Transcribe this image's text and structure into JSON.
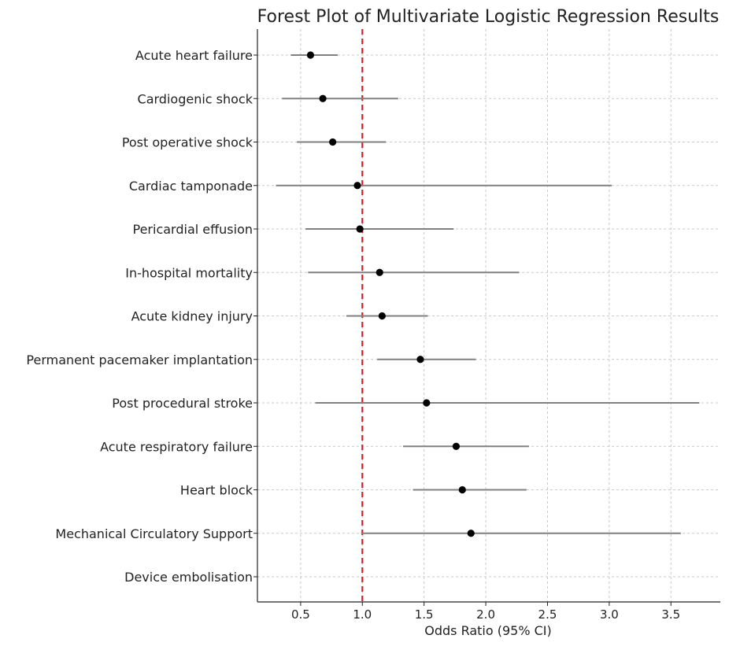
{
  "chart_data": {
    "type": "forest",
    "title": "Forest Plot of Multivariate Logistic Regression Results",
    "xlabel": "Odds Ratio (95% CI)",
    "ylabel": "",
    "xlim": [
      0.15,
      3.9
    ],
    "xticks": [
      0.5,
      1.0,
      1.5,
      2.0,
      2.5,
      3.0,
      3.5
    ],
    "xtick_labels": [
      "0.5",
      "1.0",
      "1.5",
      "2.0",
      "2.5",
      "3.0",
      "3.5"
    ],
    "reference_line": 1.0,
    "reference_color": "#e31a1c",
    "point_color": "#000000",
    "ci_color": "#808080",
    "grid": true,
    "rows": [
      {
        "label": "Acute heart failure",
        "or": 0.58,
        "lower": 0.42,
        "upper": 0.8
      },
      {
        "label": "Cardiogenic shock",
        "or": 0.68,
        "lower": 0.35,
        "upper": 1.29
      },
      {
        "label": "Post operative shock",
        "or": 0.76,
        "lower": 0.47,
        "upper": 1.19
      },
      {
        "label": "Cardiac tamponade",
        "or": 0.96,
        "lower": 0.3,
        "upper": 3.02
      },
      {
        "label": "Pericardial effusion",
        "or": 0.98,
        "lower": 0.54,
        "upper": 1.74
      },
      {
        "label": "In-hospital mortality",
        "or": 1.14,
        "lower": 0.56,
        "upper": 2.27
      },
      {
        "label": "Acute kidney injury",
        "or": 1.16,
        "lower": 0.87,
        "upper": 1.53
      },
      {
        "label": "Permanent pacemaker implantation",
        "or": 1.47,
        "lower": 1.12,
        "upper": 1.92
      },
      {
        "label": "Post procedural stroke",
        "or": 1.52,
        "lower": 0.62,
        "upper": 3.73
      },
      {
        "label": "Acute respiratory failure",
        "or": 1.76,
        "lower": 1.33,
        "upper": 2.35
      },
      {
        "label": "Heart block",
        "or": 1.81,
        "lower": 1.41,
        "upper": 2.33
      },
      {
        "label": "Mechanical Circulatory Support",
        "or": 1.88,
        "lower": 0.99,
        "upper": 3.58
      },
      {
        "label": "Device embolisation",
        "or": null,
        "lower": null,
        "upper": null
      }
    ]
  }
}
